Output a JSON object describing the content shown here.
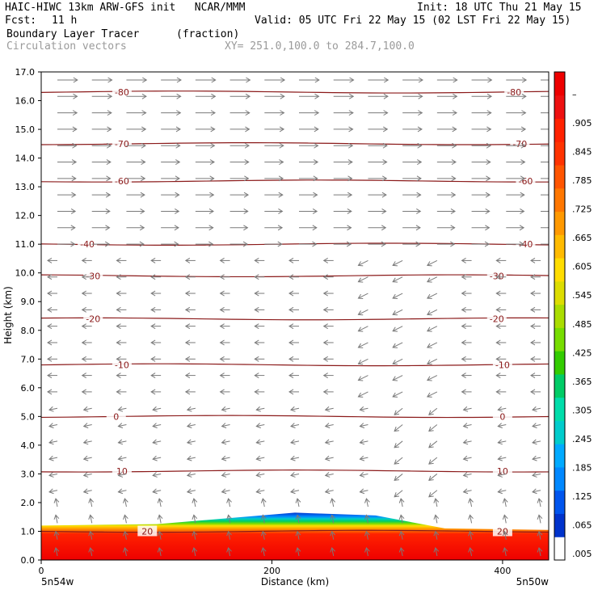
{
  "header": {
    "title": "HAIC-HIWC 13km ARW-GFS init   NCAR/MMM",
    "init": "Init: 18 UTC Thu 21 May 15",
    "fcst_label": "Fcst:",
    "fcst_value": "11 h",
    "valid": "Valid: 05 UTC Fri 22 May 15 (02 LST Fri 22 May 15)",
    "field_name": "Boundary Layer Tracer",
    "field_units": "(fraction)",
    "vector_label": "Circulation vectors",
    "xsection": "XY= 251.0,100.0 to 284.7,100.0"
  },
  "colors": {
    "contour": "#8b1a1a",
    "vector": "#7a7a7a",
    "colorbar": [
      "#ffffff",
      "#0033cc",
      "#0055ee",
      "#0088ff",
      "#00aaff",
      "#00cccc",
      "#00ddaa",
      "#00cc66",
      "#33cc00",
      "#77dd00",
      "#aadd00",
      "#dddd00",
      "#ffdd00",
      "#ffbb00",
      "#ff9900",
      "#ff7700",
      "#ff5500",
      "#ff3300",
      "#ff2200",
      "#ee1111",
      "#ee0000"
    ]
  },
  "chart_data": {
    "type": "cross-section",
    "xlabel": "Distance (km)",
    "ylabel": "Height (km)",
    "x_ticks": [
      "0",
      "200",
      "400"
    ],
    "x_endpoints": [
      "5n54w",
      "5n50w"
    ],
    "xlim": [
      0,
      440
    ],
    "ylim": [
      0,
      17
    ],
    "y_ticks": [
      "0.0",
      "1.0",
      "2.0",
      "3.0",
      "4.0",
      "5.0",
      "6.0",
      "7.0",
      "8.0",
      "9.0",
      "10.0",
      "11.0",
      "12.0",
      "13.0",
      "14.0",
      "15.0",
      "16.0",
      "17.0"
    ],
    "colorbar_labels": [
      ".005",
      ".065",
      ".125",
      ".185",
      ".245",
      ".305",
      ".365",
      ".425",
      ".485",
      ".545",
      ".605",
      ".665",
      ".725",
      ".785",
      ".845",
      ".905",
      "–"
    ],
    "temperature_contours": [
      {
        "value": "20",
        "height_km": 1.0,
        "label_x_km": [
          92,
          400
        ]
      },
      {
        "value": "10",
        "height_km": 3.1,
        "label_x_km": [
          70,
          400
        ]
      },
      {
        "value": "0",
        "height_km": 5.0,
        "label_x_km": [
          65,
          400
        ]
      },
      {
        "value": "-10",
        "height_km": 6.8,
        "label_x_km": [
          70,
          400
        ]
      },
      {
        "value": "-20",
        "height_km": 8.4,
        "label_x_km": [
          45,
          395
        ]
      },
      {
        "value": "-30",
        "height_km": 9.9,
        "label_x_km": [
          45,
          395
        ]
      },
      {
        "value": "-40",
        "height_km": 11.0,
        "label_x_km": [
          40,
          420
        ]
      },
      {
        "value": "-60",
        "height_km": 13.2,
        "label_x_km": [
          70,
          420
        ]
      },
      {
        "value": "-70",
        "height_km": 14.5,
        "label_x_km": [
          70,
          415
        ]
      },
      {
        "value": "-80",
        "height_km": 16.3,
        "label_x_km": [
          70,
          410
        ]
      }
    ],
    "tracer_top_km": [
      {
        "x": 0,
        "top": 1.2
      },
      {
        "x": 100,
        "top": 1.25
      },
      {
        "x": 160,
        "top": 1.45
      },
      {
        "x": 220,
        "top": 1.65
      },
      {
        "x": 290,
        "top": 1.55
      },
      {
        "x": 350,
        "top": 1.1
      },
      {
        "x": 440,
        "top": 1.05
      }
    ]
  }
}
